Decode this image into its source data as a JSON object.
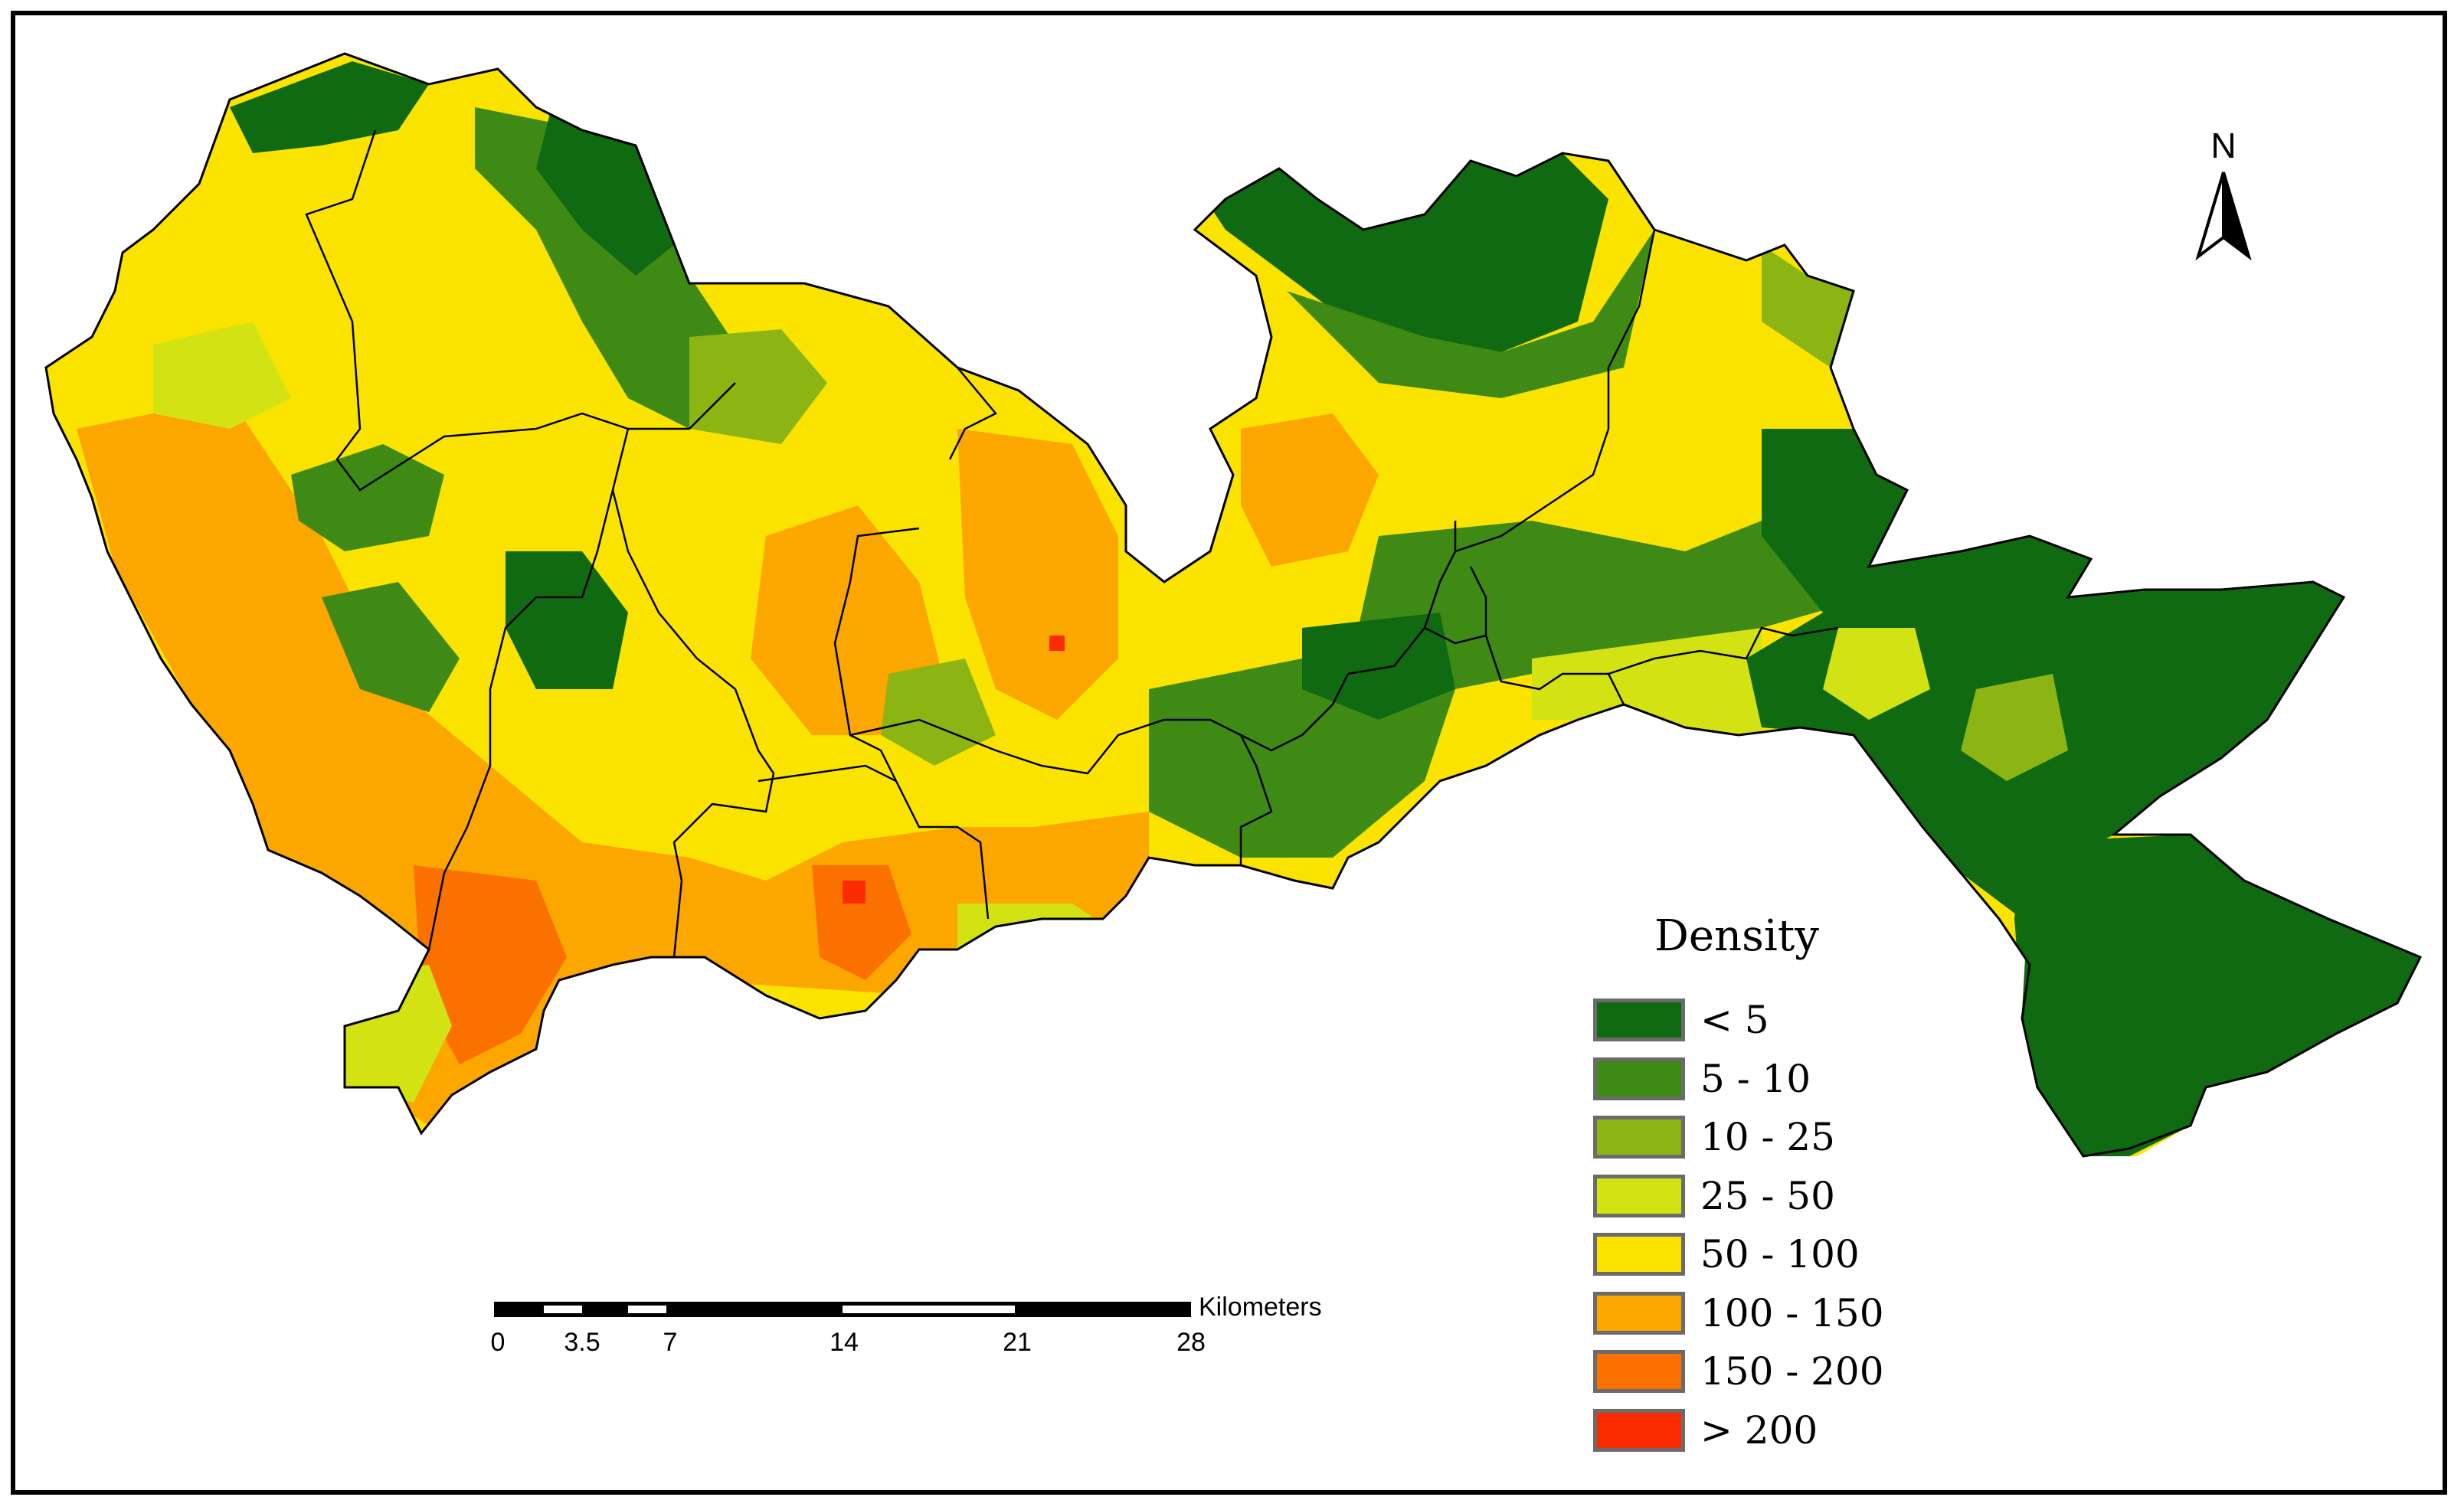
{
  "legend": {
    "title": "Density",
    "items": [
      {
        "label": "< 5",
        "color": "#0f6a12"
      },
      {
        "label": "5 - 10",
        "color": "#3f8a14"
      },
      {
        "label": "10 - 25",
        "color": "#8cb514"
      },
      {
        "label": "25 - 50",
        "color": "#d3e212"
      },
      {
        "label": "50 - 100",
        "color": "#fbe300"
      },
      {
        "label": "100 - 150",
        "color": "#fca600"
      },
      {
        "label": "150 - 200",
        "color": "#fb7100"
      },
      {
        "label": "> 200",
        "color": "#fb2d00"
      }
    ]
  },
  "scale_bar": {
    "unit": "Kilometers",
    "ticks": [
      "0",
      "3.5",
      "7",
      "14",
      "21",
      "28"
    ]
  },
  "north_arrow": {
    "label": "N",
    "icon": "north-arrow-icon"
  }
}
